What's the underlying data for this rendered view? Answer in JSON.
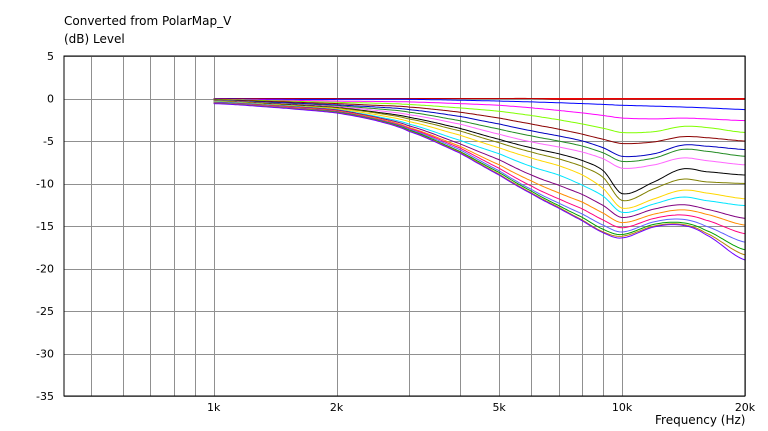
{
  "chart_data": {
    "type": "line",
    "title": "Converted from PolarMap_V",
    "ylabel": "(dB)  Level",
    "xlabel": "Frequency  (Hz)",
    "xscale": "log",
    "xlim": [
      430,
      20000
    ],
    "ylim": [
      -35,
      5
    ],
    "grid": true,
    "xticks": [
      {
        "value": 1000,
        "label": "1k"
      },
      {
        "value": 2000,
        "label": "2k"
      },
      {
        "value": 5000,
        "label": "5k"
      },
      {
        "value": 10000,
        "label": "10k"
      },
      {
        "value": 20000,
        "label": "20k"
      }
    ],
    "x_minor_gridlines": [
      500,
      600,
      700,
      800,
      900,
      3000,
      4000,
      6000,
      7000,
      8000,
      9000
    ],
    "yticks": [
      5,
      0,
      -5,
      -10,
      -15,
      -20,
      -25,
      -30,
      -35
    ],
    "x": [
      1000,
      1500,
      2000,
      2500,
      3000,
      4000,
      5000,
      6000,
      7000,
      8000,
      9000,
      10000,
      12000,
      14000,
      16000,
      20000
    ],
    "series": [
      {
        "color": "#ff0000",
        "values": [
          0,
          0,
          0,
          0,
          0,
          0,
          0,
          0,
          0,
          0,
          0,
          0,
          0,
          0,
          0,
          0
        ]
      },
      {
        "color": "#c00000",
        "values": [
          0,
          0,
          0,
          0,
          0,
          0,
          0,
          0,
          -0.1,
          -0.1,
          -0.1,
          -0.1,
          -0.1,
          -0.1,
          -0.1,
          -0.1
        ]
      },
      {
        "color": "#0000ff",
        "values": [
          -0.05,
          -0.1,
          -0.1,
          -0.1,
          -0.1,
          -0.2,
          -0.3,
          -0.4,
          -0.5,
          -0.6,
          -0.7,
          -0.8,
          -0.9,
          -1.0,
          -1.1,
          -1.3
        ]
      },
      {
        "color": "#ff00ff",
        "values": [
          -0.1,
          -0.2,
          -0.3,
          -0.35,
          -0.4,
          -0.6,
          -0.8,
          -1.1,
          -1.4,
          -1.7,
          -2.0,
          -2.3,
          -2.4,
          -2.3,
          -2.4,
          -2.6
        ]
      },
      {
        "color": "#80ff00",
        "values": [
          -0.1,
          -0.3,
          -0.45,
          -0.55,
          -0.7,
          -1.1,
          -1.5,
          -2.0,
          -2.5,
          -3.0,
          -3.5,
          -4.0,
          -3.9,
          -3.3,
          -3.4,
          -4.0
        ]
      },
      {
        "color": "#8b0000",
        "values": [
          -0.15,
          -0.4,
          -0.6,
          -0.8,
          -1.0,
          -1.6,
          -2.3,
          -3.0,
          -3.6,
          -4.2,
          -4.8,
          -5.3,
          -5.1,
          -4.5,
          -4.6,
          -5.0
        ]
      },
      {
        "color": "#0000c0",
        "values": [
          -0.2,
          -0.5,
          -0.75,
          -1.0,
          -1.3,
          -2.1,
          -3.0,
          -3.8,
          -4.4,
          -5.0,
          -5.8,
          -6.8,
          -6.5,
          -5.5,
          -5.6,
          -6.0
        ]
      },
      {
        "color": "#228b22",
        "values": [
          -0.2,
          -0.6,
          -0.85,
          -1.2,
          -1.6,
          -2.6,
          -3.6,
          -4.4,
          -5.0,
          -5.6,
          -6.4,
          -7.4,
          -7.0,
          -6.0,
          -6.2,
          -6.8
        ]
      },
      {
        "color": "#ff66ff",
        "values": [
          -0.25,
          -0.65,
          -0.95,
          -1.4,
          -1.9,
          -3.0,
          -4.2,
          -5.1,
          -5.7,
          -6.3,
          -7.1,
          -8.2,
          -7.8,
          -7.0,
          -7.3,
          -7.8
        ]
      },
      {
        "color": "#000000",
        "values": [
          -0.3,
          -0.7,
          -1.05,
          -1.6,
          -2.2,
          -3.5,
          -4.8,
          -5.8,
          -6.5,
          -7.3,
          -8.5,
          -11.2,
          -9.8,
          -8.3,
          -8.6,
          -9.0
        ]
      },
      {
        "color": "#808000",
        "values": [
          -0.3,
          -0.75,
          -1.1,
          -1.7,
          -2.4,
          -3.8,
          -5.2,
          -6.3,
          -7.1,
          -8.0,
          -9.3,
          -12.0,
          -10.6,
          -9.5,
          -9.8,
          -10.0
        ]
      },
      {
        "color": "#ffd700",
        "values": [
          -0.35,
          -0.8,
          -1.2,
          -1.9,
          -2.7,
          -4.3,
          -5.8,
          -7.0,
          -7.9,
          -9.0,
          -10.6,
          -12.9,
          -11.8,
          -10.8,
          -11.1,
          -11.8
        ]
      },
      {
        "color": "#00e5ff",
        "values": [
          -0.4,
          -0.85,
          -1.3,
          -2.1,
          -3.0,
          -4.9,
          -6.5,
          -8.0,
          -9.0,
          -10.2,
          -11.5,
          -13.4,
          -12.4,
          -11.6,
          -12.0,
          -12.6
        ]
      },
      {
        "color": "#800080",
        "values": [
          -0.45,
          -0.9,
          -1.35,
          -2.2,
          -3.2,
          -5.3,
          -7.2,
          -9.0,
          -10.2,
          -11.3,
          -12.6,
          -14.0,
          -13.0,
          -12.5,
          -13.0,
          -14.1
        ]
      },
      {
        "color": "#ff8c00",
        "values": [
          -0.5,
          -0.95,
          -1.45,
          -2.3,
          -3.4,
          -5.6,
          -7.8,
          -9.7,
          -11.1,
          -12.2,
          -13.5,
          -14.6,
          -13.6,
          -13.1,
          -13.6,
          -14.9
        ]
      },
      {
        "color": "#ff0080",
        "values": [
          -0.5,
          -1.0,
          -1.5,
          -2.4,
          -3.5,
          -5.8,
          -8.2,
          -10.3,
          -11.8,
          -13.0,
          -14.3,
          -15.2,
          -14.1,
          -13.7,
          -14.3,
          -15.9
        ]
      },
      {
        "color": "#6060ff",
        "values": [
          -0.5,
          -1.05,
          -1.55,
          -2.45,
          -3.6,
          -6.0,
          -8.5,
          -10.7,
          -12.3,
          -13.6,
          -14.9,
          -15.7,
          -14.5,
          -14.2,
          -15.0,
          -16.9
        ]
      },
      {
        "color": "#00a000",
        "values": [
          -0.55,
          -1.1,
          -1.6,
          -2.5,
          -3.7,
          -6.2,
          -8.7,
          -10.9,
          -12.6,
          -14.0,
          -15.4,
          -16.0,
          -14.8,
          -14.6,
          -15.5,
          -17.8
        ]
      },
      {
        "color": "#b8860b",
        "values": [
          -0.55,
          -1.1,
          -1.65,
          -2.55,
          -3.8,
          -6.3,
          -8.9,
          -11.1,
          -12.8,
          -14.3,
          -15.7,
          -16.2,
          -15.0,
          -14.8,
          -15.8,
          -18.4
        ]
      },
      {
        "color": "#7000ff",
        "values": [
          -0.6,
          -1.15,
          -1.7,
          -2.6,
          -3.85,
          -6.4,
          -9.0,
          -11.2,
          -12.9,
          -14.4,
          -15.8,
          -16.4,
          -15.1,
          -14.9,
          -16.0,
          -19.0
        ]
      }
    ]
  }
}
